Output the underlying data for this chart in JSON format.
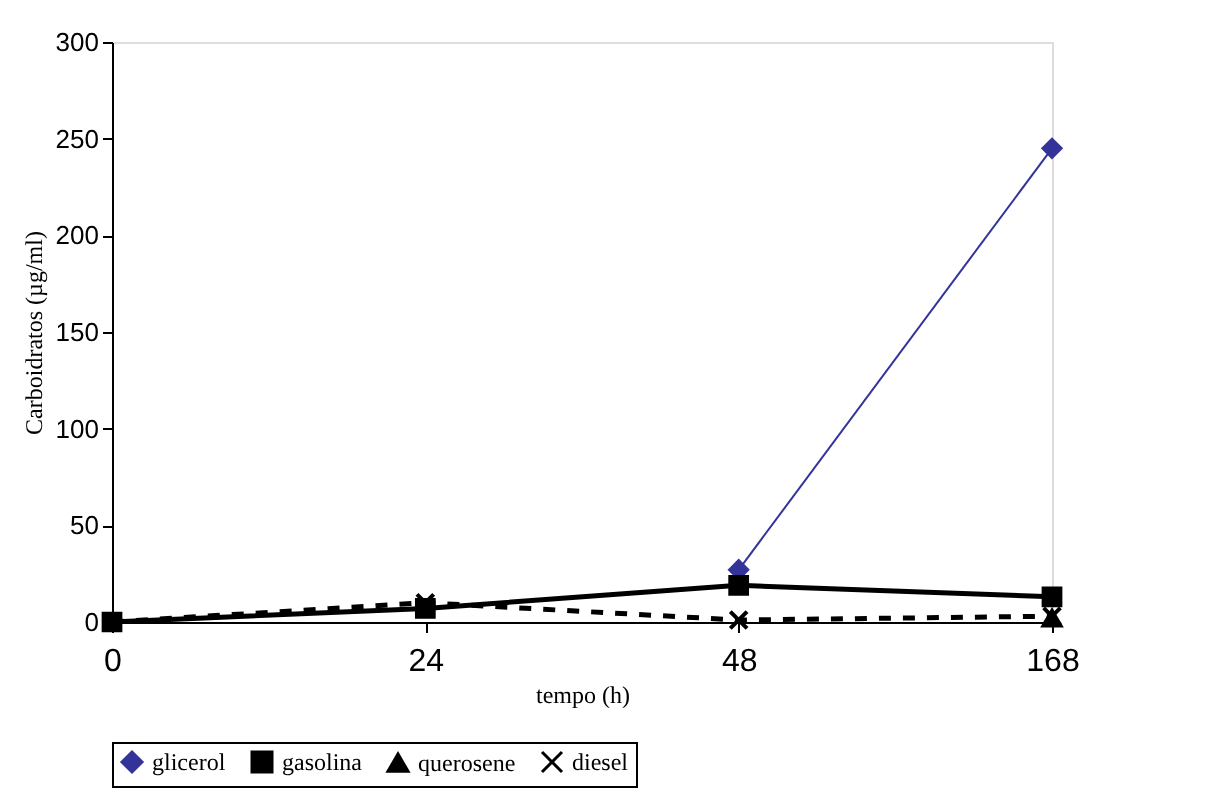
{
  "chart_data": {
    "type": "line",
    "xlabel": "tempo (h)",
    "ylabel": "Carboidratos (µg/ml)",
    "categories": [
      "0",
      "24",
      "48",
      "168"
    ],
    "ylim": [
      0,
      300
    ],
    "yticks": [
      0,
      50,
      100,
      150,
      200,
      250,
      300
    ],
    "grid": false,
    "legend": "bottom",
    "series": [
      {
        "name": "glicerol",
        "color": "#333399",
        "values": [
          null,
          null,
          27,
          245
        ],
        "marker": "diamond",
        "line_style": "solid"
      },
      {
        "name": "gasolina",
        "color": "#000000",
        "values": [
          0,
          7,
          19,
          13
        ],
        "marker": "square",
        "line_style": "solid"
      },
      {
        "name": "querosene",
        "color": "#000000",
        "values": [
          null,
          null,
          null,
          2
        ],
        "marker": "triangle",
        "line_style": "solid"
      },
      {
        "name": "diesel",
        "color": "#000000",
        "values": [
          0,
          10,
          1,
          3
        ],
        "marker": "cross",
        "line_style": "dashed"
      }
    ]
  }
}
